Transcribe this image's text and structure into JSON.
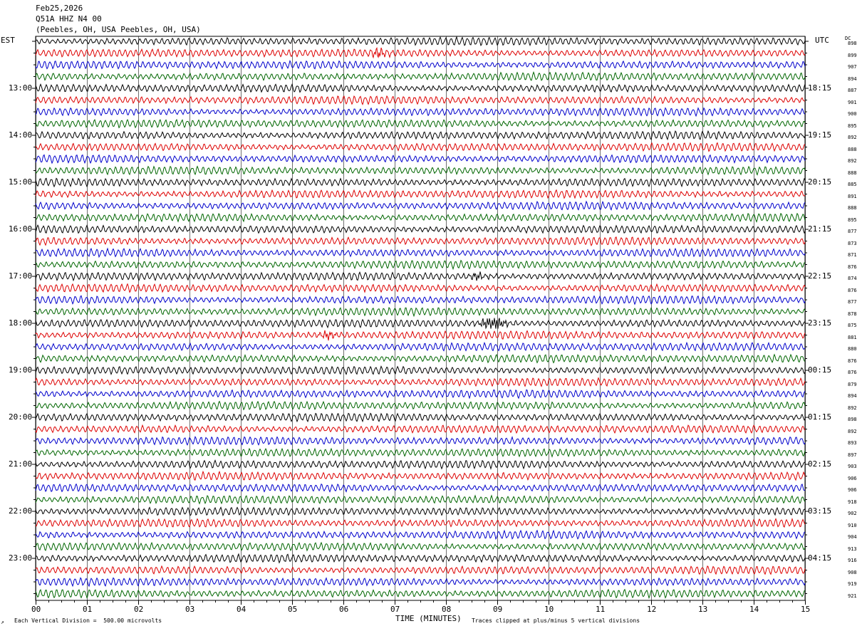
{
  "header": {
    "date": "Feb25,2026",
    "station": "Q51A HHZ N4 00",
    "location": "(Peebles, OH, USA Peebles, OH, USA)"
  },
  "left_timezone": "EST",
  "right_timezone": "UTC",
  "dc_label": "DC",
  "footer": {
    "division_note": "Each Vertical Division =  500.00 microvolts",
    "xlabel": "TIME (MINUTES)",
    "clip_note": "Traces clipped at plus/minus 5 vertical divisions"
  },
  "colors": {
    "trace_cycle": [
      "#000000",
      "#dd0000",
      "#0000cc",
      "#006600"
    ],
    "grid": "#000000"
  },
  "chart_data": {
    "type": "line",
    "x_ticks": [
      "00",
      "01",
      "02",
      "03",
      "04",
      "05",
      "06",
      "07",
      "08",
      "09",
      "10",
      "11",
      "12",
      "13",
      "14",
      "15"
    ],
    "xlim": [
      0,
      15
    ],
    "rows_per_hour": 4,
    "left_hour_labels": [
      "13:00",
      "14:00",
      "15:00",
      "16:00",
      "17:00",
      "18:00",
      "19:00",
      "20:00",
      "21:00",
      "22:00",
      "23:00"
    ],
    "right_hour_labels": [
      "18:15",
      "19:15",
      "20:15",
      "21:15",
      "22:15",
      "23:15",
      "00:15",
      "01:15",
      "02:15",
      "03:15",
      "04:15"
    ],
    "dc_values": [
      "898",
      "899",
      "907",
      "894",
      "887",
      "901",
      "900",
      "895",
      "892",
      "888",
      "892",
      "888",
      "885",
      "891",
      "888",
      "895",
      "877",
      "873",
      "871",
      "876",
      "874",
      "876",
      "877",
      "878",
      "875",
      "881",
      "880",
      "876",
      "876",
      "879",
      "894",
      "892",
      "898",
      "892",
      "893",
      "897",
      "903",
      "906",
      "906",
      "918",
      "902",
      "910",
      "904",
      "913",
      "916",
      "908",
      "919",
      "921"
    ],
    "events": [
      {
        "row": 1,
        "minute": 6.7,
        "amplitude": 1.8
      },
      {
        "row": 20,
        "minute": 8.6,
        "amplitude": 1.4
      },
      {
        "row": 24,
        "minute": 9.0,
        "amplitude": 2.6
      },
      {
        "row": 24,
        "minute": 8.8,
        "amplitude": 1.6
      },
      {
        "row": 25,
        "minute": 5.7,
        "amplitude": 1.5
      }
    ]
  }
}
